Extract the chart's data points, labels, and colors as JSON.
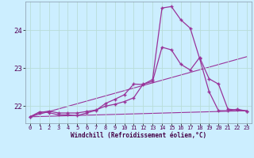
{
  "xlabel": "Windchill (Refroidissement éolien,°C)",
  "background_color": "#cceeff",
  "grid_color": "#b8ddd8",
  "line_color": "#993399",
  "xlim": [
    -0.5,
    23.5
  ],
  "ylim": [
    21.55,
    24.75
  ],
  "yticks": [
    22,
    23,
    24
  ],
  "xticks": [
    0,
    1,
    2,
    3,
    4,
    5,
    6,
    7,
    8,
    9,
    10,
    11,
    12,
    13,
    14,
    15,
    16,
    17,
    18,
    19,
    20,
    21,
    22,
    23
  ],
  "series1_x": [
    0,
    1,
    2,
    3,
    4,
    5,
    6,
    7,
    8,
    9,
    10,
    11,
    12,
    13,
    14,
    15,
    16,
    17,
    18,
    19,
    20,
    21,
    22,
    23
  ],
  "series1_y": [
    21.72,
    21.85,
    21.83,
    21.77,
    21.77,
    21.75,
    21.82,
    21.89,
    22.07,
    22.18,
    22.3,
    22.58,
    22.57,
    22.7,
    24.58,
    24.62,
    24.27,
    24.05,
    23.25,
    22.38,
    21.88,
    21.88,
    21.92,
    21.87
  ],
  "series2_x": [
    0,
    1,
    2,
    3,
    4,
    5,
    6,
    7,
    8,
    9,
    10,
    11,
    12,
    13,
    14,
    15,
    16,
    17,
    18,
    19,
    20,
    21,
    22,
    23
  ],
  "series2_y": [
    21.72,
    21.83,
    21.87,
    21.82,
    21.82,
    21.82,
    21.86,
    21.9,
    22.0,
    22.05,
    22.12,
    22.22,
    22.58,
    22.65,
    23.55,
    23.48,
    23.1,
    22.95,
    23.28,
    22.72,
    22.58,
    21.92,
    21.9,
    21.87
  ],
  "series3_x": [
    0,
    23
  ],
  "series3_y": [
    21.72,
    23.3
  ],
  "series4_x": [
    0,
    23
  ],
  "series4_y": [
    21.72,
    21.88
  ]
}
